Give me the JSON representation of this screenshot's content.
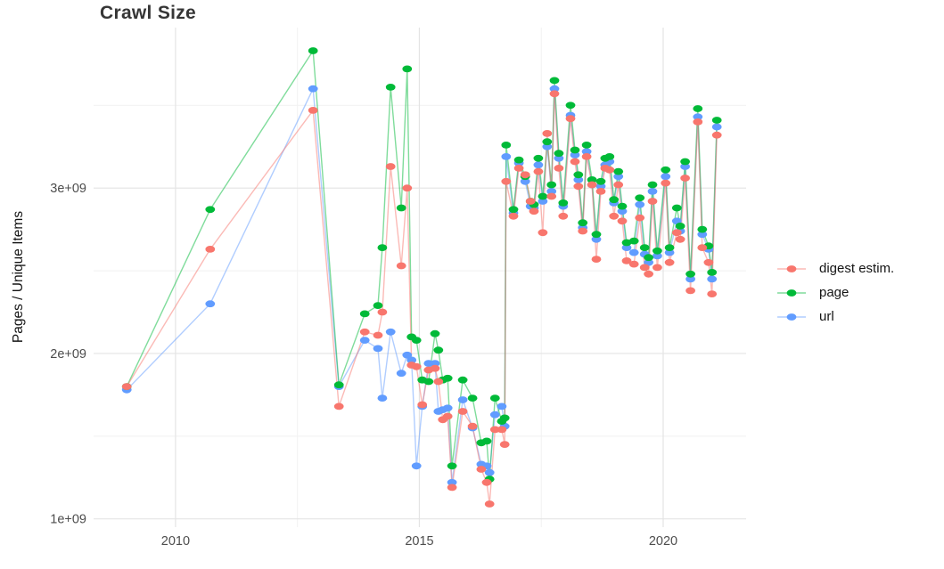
{
  "title": "Crawl Size",
  "y_axis_label": "Pages / Unique Items",
  "colors": {
    "background": "#ffffff",
    "grid_major": "#e4e4e4",
    "grid_minor": "#f1f1f1",
    "tick_label": "#4d4d4d",
    "title_text": "#363636",
    "digest": "#F8766D",
    "page": "#00BA38",
    "url": "#619CFF"
  },
  "legend": {
    "position": "right",
    "items": [
      {
        "label": "digest estim.",
        "color": "#F8766D"
      },
      {
        "label": "page",
        "color": "#00BA38"
      },
      {
        "label": "url",
        "color": "#619CFF"
      }
    ]
  },
  "chart_data": {
    "type": "line",
    "title": "Crawl Size",
    "xlabel": "",
    "ylabel": "Pages / Unique Items",
    "x_unit": "year (decimal, one point per crawl)",
    "value_unit": 1000000000,
    "value_note": "series values are in billions (multiply by 1e9)",
    "grid": true,
    "legend_position": "right",
    "xlim": [
      2008.32,
      2021.7
    ],
    "ylim": [
      0.95,
      3.97
    ],
    "axes": {
      "x_ticks": [
        {
          "label": "2010",
          "value": 2010
        },
        {
          "label": "2015",
          "value": 2015
        },
        {
          "label": "2020",
          "value": 2020
        }
      ],
      "y_ticks": [
        {
          "label": "1e+09",
          "value": 1.0
        },
        {
          "label": "2e+09",
          "value": 2.0
        },
        {
          "label": "3e+09",
          "value": 3.0
        }
      ],
      "x_minor_ticks": [
        2012.5,
        2017.5
      ],
      "y_minor_ticks": [
        1.5,
        2.5,
        3.5
      ]
    },
    "x": [
      2009.0,
      2010.71,
      2012.82,
      2013.35,
      2013.88,
      2014.15,
      2014.24,
      2014.41,
      2014.63,
      2014.75,
      2014.84,
      2014.94,
      2015.06,
      2015.19,
      2015.32,
      2015.39,
      2015.48,
      2015.58,
      2015.67,
      2015.89,
      2016.09,
      2016.27,
      2016.38,
      2016.44,
      2016.55,
      2016.69,
      2016.75,
      2016.78,
      2016.93,
      2017.04,
      2017.17,
      2017.28,
      2017.35,
      2017.44,
      2017.53,
      2017.62,
      2017.71,
      2017.77,
      2017.86,
      2017.95,
      2018.1,
      2018.19,
      2018.26,
      2018.35,
      2018.43,
      2018.54,
      2018.63,
      2018.72,
      2018.81,
      2018.9,
      2018.99,
      2019.08,
      2019.16,
      2019.25,
      2019.4,
      2019.52,
      2019.62,
      2019.7,
      2019.78,
      2019.88,
      2020.05,
      2020.13,
      2020.28,
      2020.35,
      2020.45,
      2020.56,
      2020.71,
      2020.8,
      2020.93,
      2021.0,
      2021.1
    ],
    "series": [
      {
        "name": "digest estim.",
        "key": "digest",
        "color": "#F8766D",
        "values": [
          1.8,
          2.63,
          3.47,
          1.68,
          2.13,
          2.11,
          2.25,
          3.13,
          2.53,
          3.0,
          1.93,
          1.92,
          1.69,
          1.9,
          1.91,
          1.83,
          1.6,
          1.62,
          1.19,
          1.65,
          1.56,
          1.3,
          1.22,
          1.09,
          1.54,
          1.54,
          1.45,
          3.04,
          2.83,
          3.12,
          3.08,
          2.92,
          2.86,
          3.1,
          2.73,
          3.33,
          2.95,
          3.57,
          3.12,
          2.83,
          3.42,
          3.16,
          3.01,
          2.74,
          3.19,
          3.02,
          2.57,
          2.98,
          3.12,
          3.11,
          2.83,
          3.02,
          2.8,
          2.56,
          2.54,
          2.82,
          2.52,
          2.48,
          2.92,
          2.52,
          3.03,
          2.55,
          2.73,
          2.69,
          3.06,
          2.38,
          3.4,
          2.64,
          2.55,
          2.36,
          3.32
        ]
      },
      {
        "name": "page",
        "key": "page",
        "color": "#00BA38",
        "values": [
          1.8,
          2.87,
          3.83,
          1.81,
          2.24,
          2.29,
          2.64,
          3.61,
          2.88,
          3.72,
          2.1,
          2.08,
          1.84,
          1.83,
          2.12,
          2.02,
          1.84,
          1.85,
          1.32,
          1.84,
          1.73,
          1.46,
          1.47,
          1.24,
          1.73,
          1.59,
          1.61,
          3.26,
          2.87,
          3.17,
          3.07,
          2.92,
          2.9,
          3.18,
          2.95,
          3.28,
          3.02,
          3.65,
          3.21,
          2.91,
          3.5,
          3.23,
          3.08,
          2.79,
          3.26,
          3.05,
          2.72,
          3.04,
          3.18,
          3.19,
          2.93,
          3.1,
          2.89,
          2.67,
          2.68,
          2.94,
          2.64,
          2.58,
          3.02,
          2.62,
          3.11,
          2.64,
          2.88,
          2.77,
          3.16,
          2.48,
          3.48,
          2.75,
          2.65,
          2.49,
          3.41
        ]
      },
      {
        "name": "url",
        "key": "url",
        "color": "#619CFF",
        "values": [
          1.78,
          2.3,
          3.6,
          1.8,
          2.08,
          2.03,
          1.73,
          2.13,
          1.88,
          1.99,
          1.96,
          1.32,
          1.68,
          1.94,
          1.94,
          1.65,
          1.66,
          1.67,
          1.22,
          1.72,
          1.55,
          1.33,
          1.32,
          1.28,
          1.63,
          1.68,
          1.56,
          3.19,
          2.85,
          3.15,
          3.04,
          2.89,
          2.88,
          3.14,
          2.92,
          3.25,
          2.98,
          3.6,
          3.18,
          2.89,
          3.44,
          3.2,
          3.05,
          2.76,
          3.22,
          3.02,
          2.69,
          3.01,
          3.14,
          3.16,
          2.91,
          3.07,
          2.86,
          2.64,
          2.61,
          2.9,
          2.6,
          2.55,
          2.98,
          2.59,
          3.07,
          2.61,
          2.8,
          2.74,
          3.13,
          2.45,
          3.43,
          2.72,
          2.63,
          2.45,
          3.37
        ]
      }
    ]
  }
}
